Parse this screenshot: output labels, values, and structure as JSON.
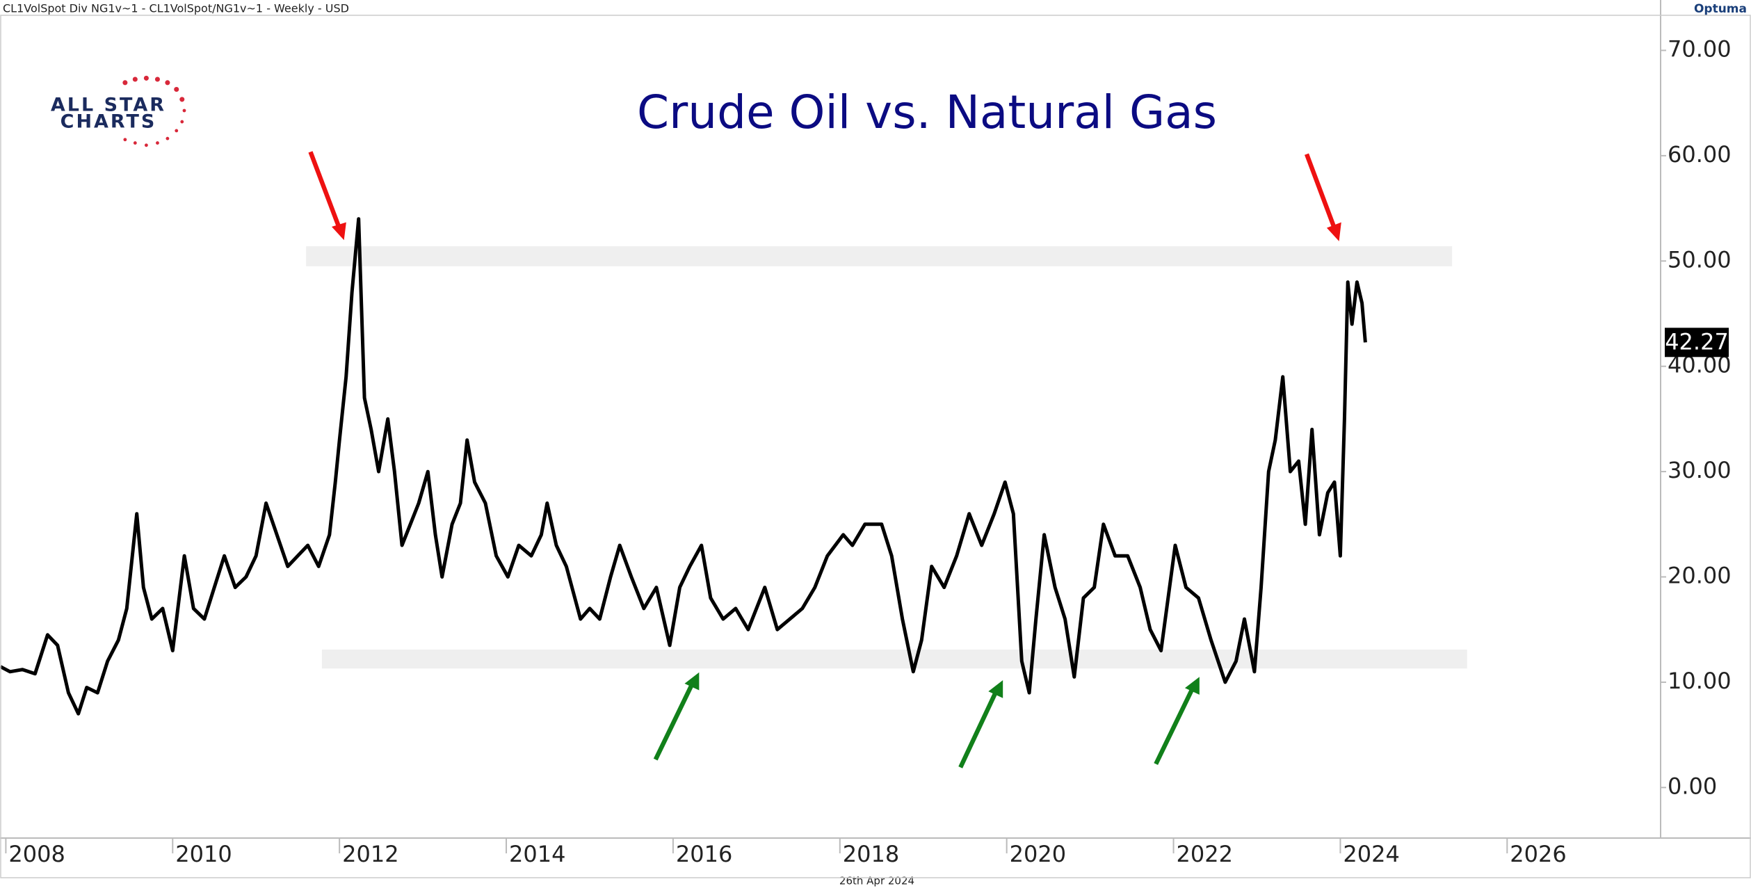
{
  "chart_data": {
    "type": "line",
    "source_label": "CL1VolSpot Div NG1v~1 - CL1VolSpot/NG1v~1 - Weekly - USD",
    "brand": "Optuma",
    "logo_top": "ALL STAR",
    "logo_bottom": "CHARTS",
    "title": "Crude Oil vs. Natural Gas",
    "date_label": "26th Apr 2024",
    "last_value": 42.27,
    "xlim": [
      2007.93,
      2027.84
    ],
    "xticks": [
      2008,
      2010,
      2012,
      2014,
      2016,
      2018,
      2020,
      2022,
      2024,
      2026
    ],
    "ylim": [
      -4.8,
      73.2
    ],
    "yticks": [
      {
        "value": 0,
        "label": "0.00"
      },
      {
        "value": 10,
        "label": "10.00"
      },
      {
        "value": 20,
        "label": "20.00"
      },
      {
        "value": 30,
        "label": "30.00"
      },
      {
        "value": 40,
        "label": "40.00"
      },
      {
        "value": 50,
        "label": "50.00"
      },
      {
        "value": 60,
        "label": "60.00"
      },
      {
        "value": 70,
        "label": "70.00"
      }
    ],
    "zones": [
      {
        "x": [
          2011.6,
          2025.34
        ],
        "y": [
          49.5,
          51.4
        ],
        "color": "#efefef"
      },
      {
        "x": [
          2011.79,
          2025.52
        ],
        "y": [
          11.3,
          13.1
        ],
        "color": "#efefef"
      }
    ],
    "series": [
      {
        "color": "#000000",
        "x": [
          2007.93,
          2008.05,
          2008.2,
          2008.35,
          2008.5,
          2008.62,
          2008.75,
          2008.87,
          2008.97,
          2009.1,
          2009.22,
          2009.35,
          2009.45,
          2009.57,
          2009.65,
          2009.75,
          2009.88,
          2010.0,
          2010.14,
          2010.25,
          2010.38,
          2010.5,
          2010.62,
          2010.75,
          2010.88,
          2011.0,
          2011.12,
          2011.25,
          2011.38,
          2011.5,
          2011.62,
          2011.75,
          2011.88,
          2011.95,
          2012.0,
          2012.08,
          2012.15,
          2012.23,
          2012.3,
          2012.38,
          2012.47,
          2012.58,
          2012.66,
          2012.75,
          2012.85,
          2012.95,
          2013.06,
          2013.15,
          2013.23,
          2013.35,
          2013.45,
          2013.53,
          2013.62,
          2013.75,
          2013.88,
          2014.02,
          2014.15,
          2014.3,
          2014.42,
          2014.49,
          2014.6,
          2014.72,
          2014.89,
          2015.0,
          2015.12,
          2015.25,
          2015.36,
          2015.5,
          2015.65,
          2015.8,
          2015.96,
          2016.08,
          2016.2,
          2016.34,
          2016.45,
          2016.6,
          2016.75,
          2016.9,
          2017.1,
          2017.25,
          2017.4,
          2017.55,
          2017.7,
          2017.85,
          2018.04,
          2018.15,
          2018.3,
          2018.5,
          2018.62,
          2018.75,
          2018.88,
          2018.98,
          2019.1,
          2019.25,
          2019.4,
          2019.55,
          2019.7,
          2019.85,
          2019.98,
          2020.08,
          2020.18,
          2020.27,
          2020.35,
          2020.45,
          2020.58,
          2020.7,
          2020.81,
          2020.92,
          2021.05,
          2021.16,
          2021.3,
          2021.45,
          2021.6,
          2021.72,
          2021.85,
          2022.02,
          2022.15,
          2022.3,
          2022.45,
          2022.62,
          2022.75,
          2022.85,
          2022.97,
          2023.05,
          2023.14,
          2023.22,
          2023.31,
          2023.4,
          2023.5,
          2023.58,
          2023.66,
          2023.75,
          2023.85,
          2023.93,
          2024.0,
          2024.05,
          2024.09,
          2024.14,
          2024.2,
          2024.26,
          2024.3
        ],
        "values": [
          11.5,
          11,
          11.2,
          10.8,
          14.5,
          13.5,
          9,
          7,
          9.5,
          9,
          12,
          14,
          17,
          26,
          19,
          16,
          17,
          13,
          22,
          17,
          16,
          19,
          22,
          19,
          20,
          22,
          27,
          24,
          21,
          22,
          23,
          21,
          24,
          29,
          33,
          39,
          47,
          54,
          37,
          34,
          30,
          35,
          30,
          23,
          25,
          27,
          30,
          24,
          20,
          25,
          27,
          33,
          29,
          27,
          22,
          20,
          23,
          22,
          24,
          27,
          23,
          21,
          16,
          17,
          16,
          20,
          23,
          20,
          17,
          19,
          13.5,
          19,
          21,
          23,
          18,
          16,
          17,
          15,
          19,
          15,
          16,
          17,
          19,
          22,
          24,
          23,
          25,
          25,
          22,
          16,
          11,
          14,
          21,
          19,
          22,
          26,
          23,
          26,
          29,
          26,
          12,
          9,
          16,
          24,
          19,
          16,
          10.5,
          18,
          19,
          25,
          22,
          22,
          19,
          15,
          13,
          23,
          19,
          18,
          14,
          10,
          12,
          16,
          11,
          19,
          30,
          33,
          39,
          30,
          31,
          25,
          34,
          24,
          28,
          29,
          22,
          35,
          48,
          44,
          48,
          46,
          42.27
        ]
      }
    ]
  }
}
